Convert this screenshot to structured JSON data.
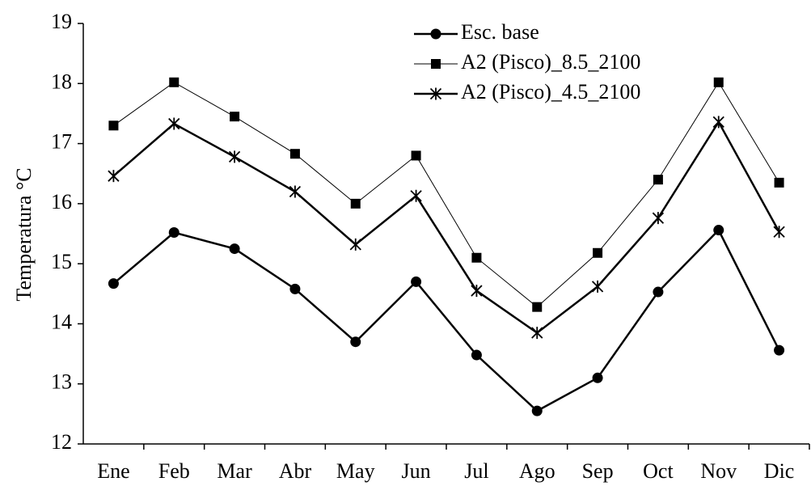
{
  "chart_data": {
    "type": "line",
    "y_label": "Temperatura °C",
    "categories": [
      "Ene",
      "Feb",
      "Mar",
      "Abr",
      "May",
      "Jun",
      "Jul",
      "Ago",
      "Sep",
      "Oct",
      "Nov",
      "Dic"
    ],
    "series": [
      {
        "name": "Esc. base",
        "color": "#000000",
        "marker": "circle",
        "line_width": 2.5,
        "values": [
          14.67,
          15.52,
          15.25,
          14.58,
          13.7,
          14.7,
          13.48,
          12.55,
          13.1,
          14.53,
          15.56,
          13.56
        ]
      },
      {
        "name": "A2 (Pisco)_8.5_2100",
        "color": "#000000",
        "marker": "square",
        "line_width": 1,
        "values": [
          17.3,
          18.02,
          17.45,
          16.83,
          16.0,
          16.8,
          15.1,
          14.28,
          15.18,
          16.4,
          18.02,
          16.35
        ]
      },
      {
        "name": "A2 (Pisco)_4.5_2100",
        "color": "#000000",
        "marker": "star",
        "line_width": 2.5,
        "values": [
          16.46,
          17.33,
          16.78,
          16.2,
          15.32,
          16.13,
          14.55,
          13.85,
          14.62,
          15.76,
          17.36,
          15.53
        ]
      }
    ],
    "ylim": [
      12,
      19
    ],
    "yticks": [
      12,
      13,
      14,
      15,
      16,
      17,
      18,
      19
    ],
    "legend": "top-right",
    "grid": false
  }
}
